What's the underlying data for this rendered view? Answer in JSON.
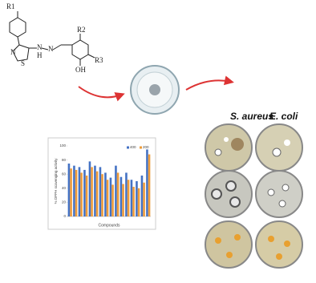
{
  "structure": {
    "labels": [
      "R1",
      "N",
      "S",
      "N",
      "N",
      "H",
      "R2",
      "R3",
      "OH"
    ]
  },
  "organisms": [
    "S. aureus",
    "E. coli"
  ],
  "chart_data": {
    "type": "bar",
    "y_label": "% DPPH scavenging activity",
    "x_label": "Compounds",
    "categories": [
      null,
      null,
      null,
      null,
      null,
      null,
      null,
      null,
      null,
      null,
      null,
      null,
      null,
      null,
      null,
      null
    ],
    "series": [
      {
        "name": "400",
        "color": "#4472c4",
        "values": [
          75,
          72,
          70,
          66,
          78,
          72,
          70,
          62,
          55,
          72,
          56,
          62,
          52,
          50,
          58,
          95
        ]
      },
      {
        "name": "200",
        "color": "#ed9b3a",
        "values": [
          68,
          66,
          62,
          58,
          70,
          64,
          60,
          52,
          45,
          62,
          46,
          52,
          42,
          40,
          48,
          88
        ]
      }
    ],
    "ylim": [
      0,
      100
    ],
    "yticks": [
      0,
      20,
      40,
      60,
      80,
      100
    ],
    "grid": false,
    "legend": "top-right"
  }
}
